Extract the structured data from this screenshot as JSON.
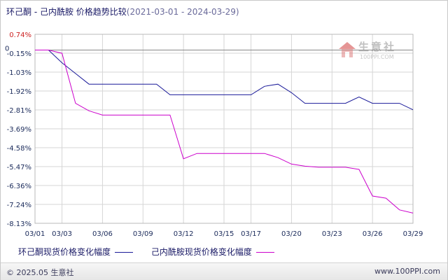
{
  "chart_data": {
    "type": "line",
    "title": "环己酮 - 己内酰胺 价格趋势比较",
    "date_range": "(2021-03-01 - 2024-03-29)",
    "x": [
      "03/01",
      "03/02",
      "03/03",
      "03/04",
      "03/05",
      "03/06",
      "03/07",
      "03/08",
      "03/09",
      "03/10",
      "03/11",
      "03/12",
      "03/13",
      "03/14",
      "03/15",
      "03/16",
      "03/17",
      "03/18",
      "03/19",
      "03/20",
      "03/21",
      "03/22",
      "03/23",
      "03/24",
      "03/25",
      "03/26",
      "03/27",
      "03/28",
      "03/29"
    ],
    "x_ticks": [
      "03/01",
      "03/03",
      "03/06",
      "03/09",
      "03/12",
      "03/15",
      "03/17",
      "03/20",
      "03/23",
      "03/26",
      "03/29"
    ],
    "y_ticks": [
      "0.74%",
      "-0.15%",
      "-1.03%",
      "-1.92%",
      "-2.81%",
      "-3.69%",
      "-4.58%",
      "-5.47%",
      "-6.36%",
      "-7.24%",
      "-8.13%"
    ],
    "ylim": [
      -8.13,
      0.74
    ],
    "zero_label": "0",
    "series": [
      {
        "name": "环己酮现货价格变化幅度",
        "color": "#1a1a99",
        "values": [
          0,
          0,
          -0.6,
          -1.1,
          -1.6,
          -1.6,
          -1.6,
          -1.6,
          -1.6,
          -1.6,
          -2.1,
          -2.1,
          -2.1,
          -2.1,
          -2.1,
          -2.1,
          -2.1,
          -1.7,
          -1.6,
          -2.0,
          -2.5,
          -2.5,
          -2.5,
          -2.5,
          -2.2,
          -2.5,
          -2.5,
          -2.5,
          -2.8
        ]
      },
      {
        "name": "己内酰胺现货价格变化幅度",
        "color": "#cc00cc",
        "values": [
          0,
          0,
          -0.15,
          -2.5,
          -2.85,
          -3.05,
          -3.05,
          -3.05,
          -3.05,
          -3.05,
          -3.05,
          -5.1,
          -4.85,
          -4.85,
          -4.85,
          -4.85,
          -4.85,
          -4.85,
          -5.05,
          -5.35,
          -5.45,
          -5.5,
          -5.5,
          -5.5,
          -5.6,
          -6.85,
          -6.95,
          -7.5,
          -7.65
        ]
      }
    ]
  },
  "watermark": {
    "text": "生意社",
    "url": "100PPI.COM"
  },
  "footer": {
    "copyright": "© 2025.05 生意社",
    "site": "www.100PPI.com"
  }
}
